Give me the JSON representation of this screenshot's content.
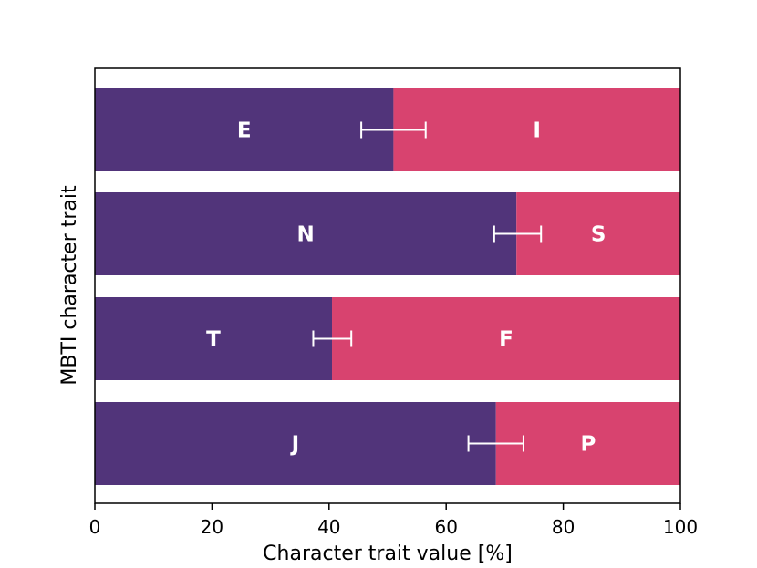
{
  "chart_data": {
    "type": "bar",
    "orientation": "horizontal",
    "stacked": true,
    "title": "",
    "xlabel": "Character trait value [%]",
    "ylabel": "MBTI character trait",
    "xlim": [
      0,
      100
    ],
    "xticks": [
      0,
      20,
      40,
      60,
      80,
      100
    ],
    "grid": false,
    "colors": {
      "left": "#51347a",
      "right": "#d8436f",
      "error_bar": "#ffffff"
    },
    "categories": [
      {
        "left_label": "E",
        "right_label": "I",
        "value": 51,
        "error_low": 45.5,
        "error_high": 56.5
      },
      {
        "left_label": "N",
        "right_label": "S",
        "value": 72,
        "error_low": 68.2,
        "error_high": 76.2
      },
      {
        "left_label": "T",
        "right_label": "F",
        "value": 40.5,
        "error_low": 37.3,
        "error_high": 43.8
      },
      {
        "left_label": "J",
        "right_label": "P",
        "value": 68.5,
        "error_low": 63.8,
        "error_high": 73.2
      }
    ]
  }
}
